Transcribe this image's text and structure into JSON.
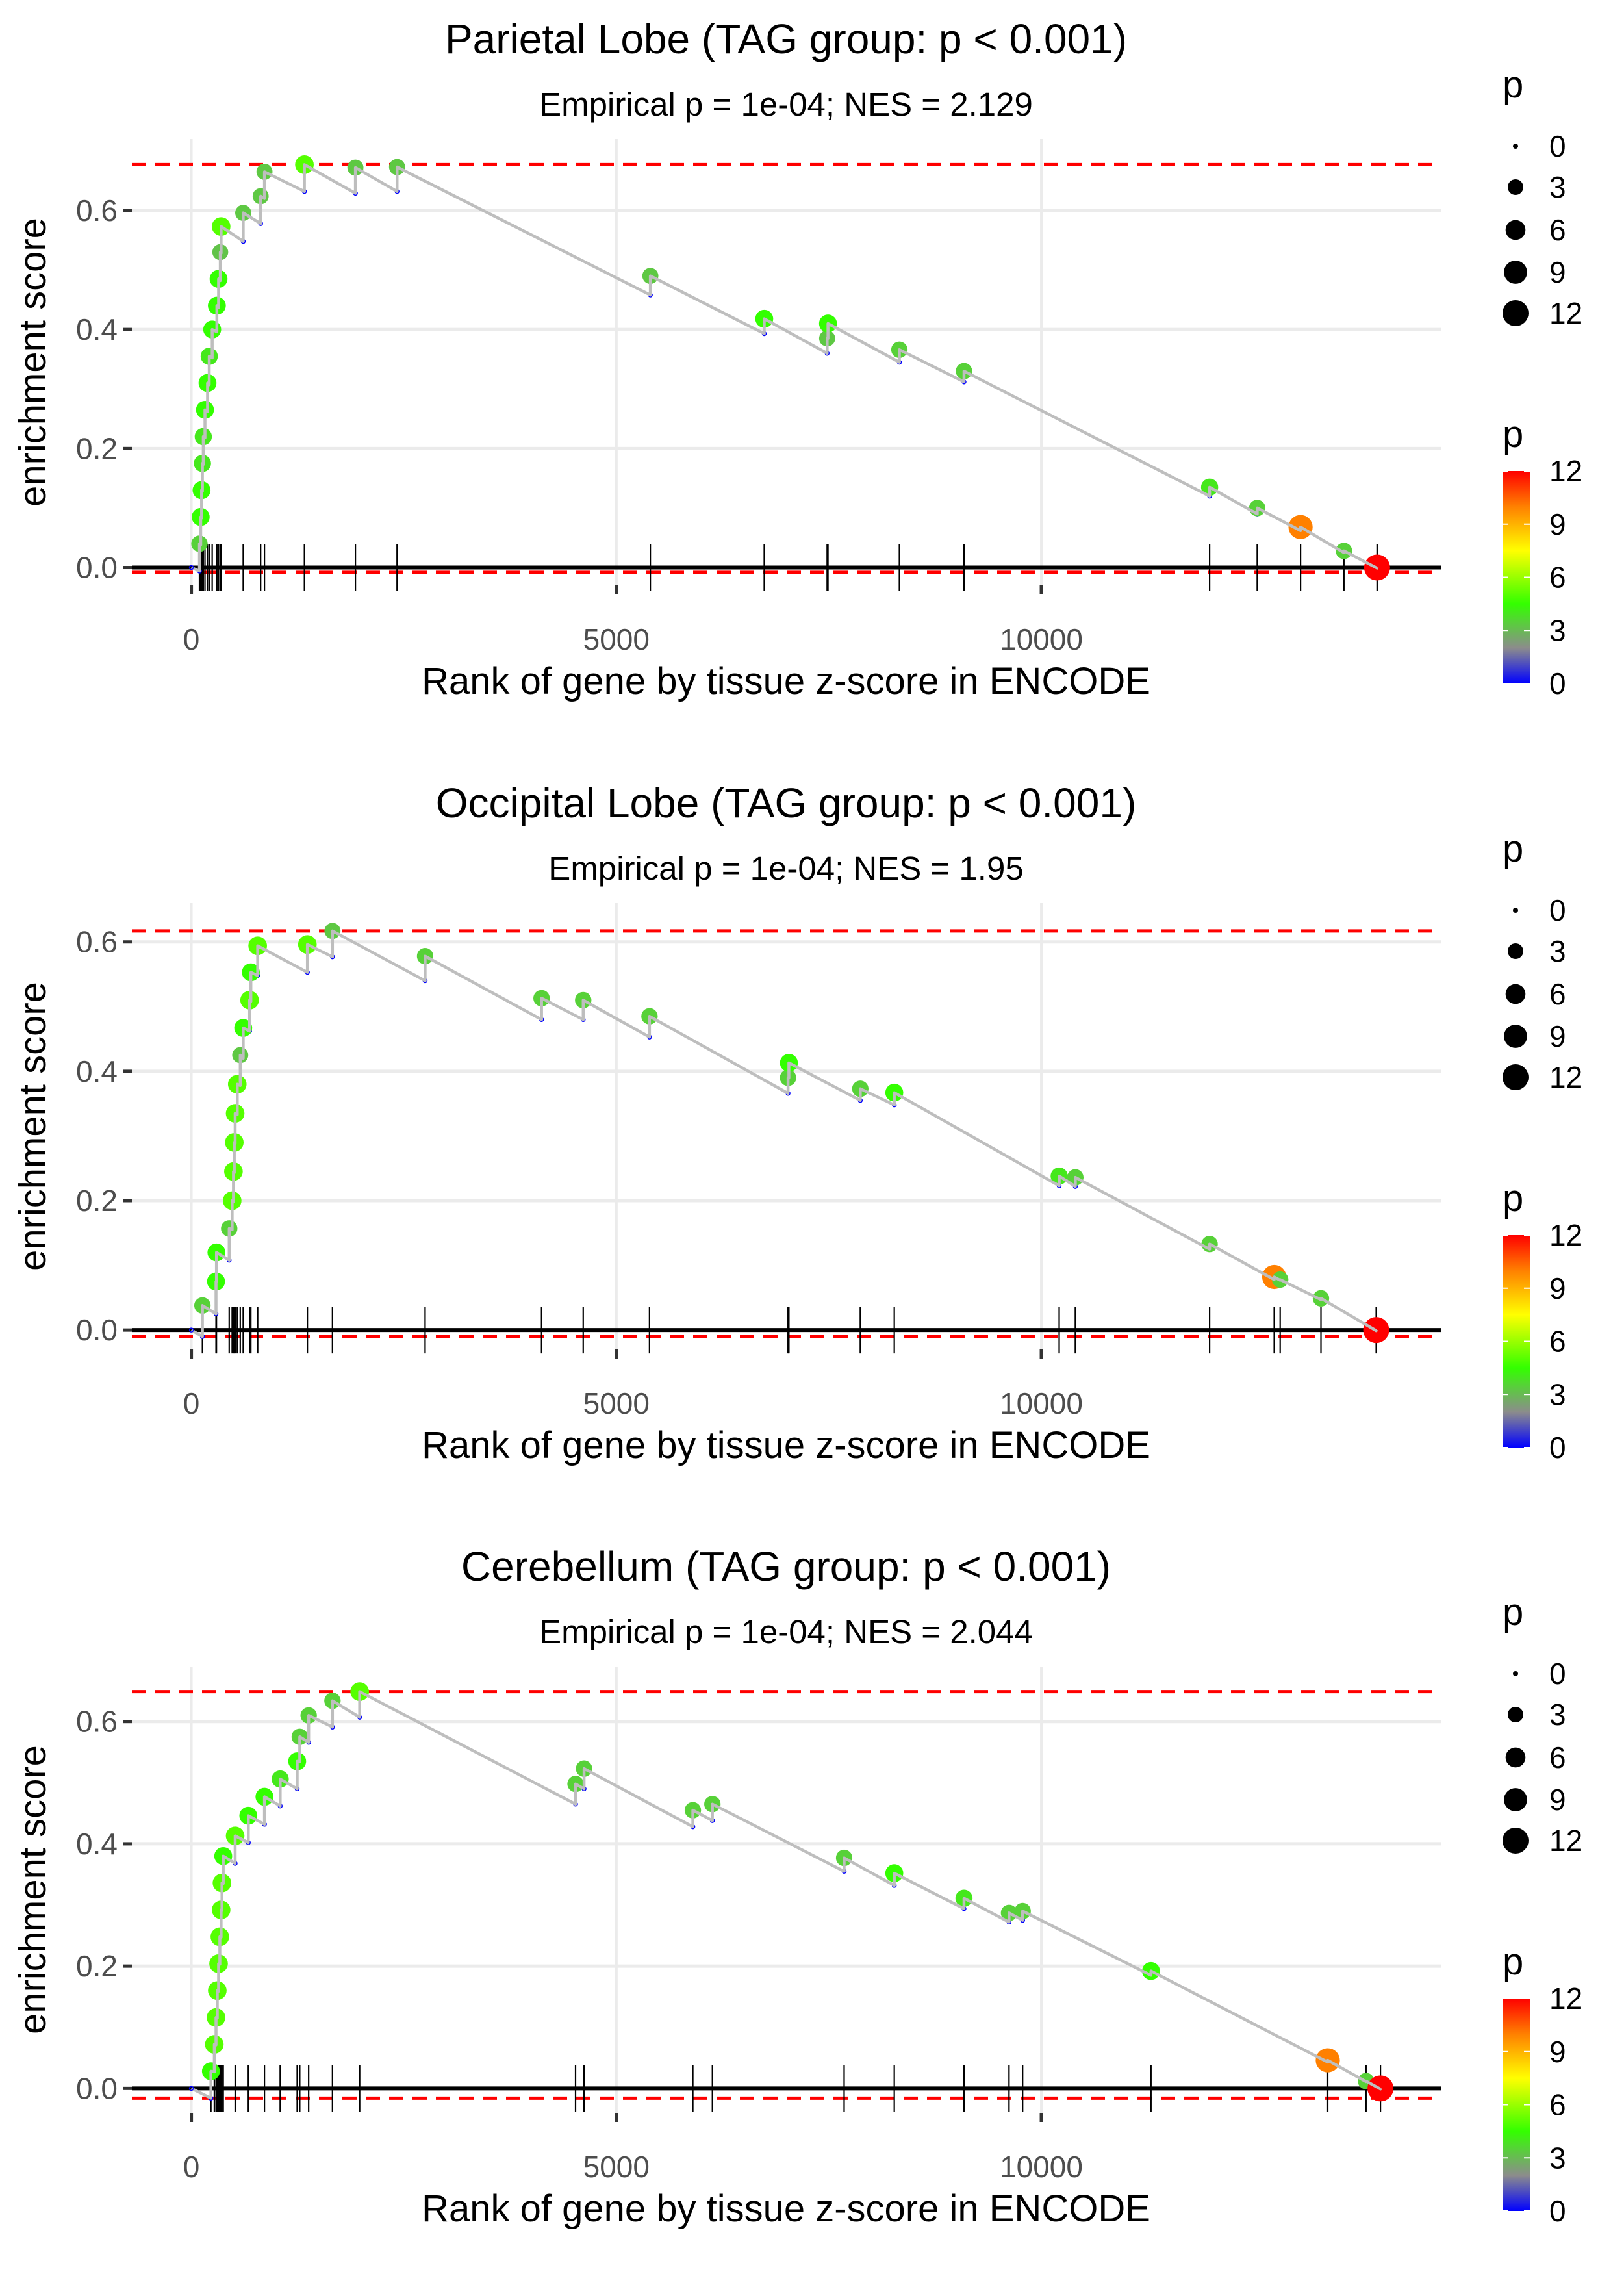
{
  "chart_data": [
    {
      "type": "line",
      "title": "Parietal Lobe (TAG group: p < 0.001)",
      "subtitle": "Empirical p = 1e-04; NES = 2.129",
      "xlabel": "Rank of gene by tissue z-score in ENCODE",
      "ylabel": "enrichment score",
      "xlim": [
        -700,
        14700
      ],
      "ylim": [
        -0.03,
        0.72
      ],
      "x_ticks": [
        0,
        5000,
        10000
      ],
      "x_tick_labels": [
        "0",
        "5000",
        "10000"
      ],
      "y_ticks": [
        0.0,
        0.2,
        0.4,
        0.6
      ],
      "y_tick_labels": [
        "0.0",
        "0.2",
        "0.4",
        "0.6"
      ],
      "max_es": 0.677,
      "min_es": -0.008,
      "grid": true,
      "hits": [
        {
          "rank": 95,
          "trough": -0.006,
          "peak": 0.04,
          "p": 3.5
        },
        {
          "rank": 110,
          "trough": 0.038,
          "peak": 0.085,
          "p": 4.5
        },
        {
          "rank": 120,
          "trough": 0.083,
          "peak": 0.13,
          "p": 4.5
        },
        {
          "rank": 130,
          "trough": 0.128,
          "peak": 0.175,
          "p": 4
        },
        {
          "rank": 140,
          "trough": 0.173,
          "peak": 0.22,
          "p": 4
        },
        {
          "rank": 160,
          "trough": 0.218,
          "peak": 0.265,
          "p": 4.5
        },
        {
          "rank": 190,
          "trough": 0.262,
          "peak": 0.31,
          "p": 4.5
        },
        {
          "rank": 210,
          "trough": 0.307,
          "peak": 0.355,
          "p": 4
        },
        {
          "rank": 245,
          "trough": 0.352,
          "peak": 0.4,
          "p": 4.5
        },
        {
          "rank": 300,
          "trough": 0.396,
          "peak": 0.44,
          "p": 4.5
        },
        {
          "rank": 320,
          "trough": 0.437,
          "peak": 0.485,
          "p": 4.5
        },
        {
          "rank": 340,
          "trough": 0.482,
          "peak": 0.53,
          "p": 3.2
        },
        {
          "rank": 350,
          "trough": 0.528,
          "peak": 0.573,
          "p": 5
        },
        {
          "rank": 610,
          "trough": 0.548,
          "peak": 0.596,
          "p": 3.3
        },
        {
          "rank": 815,
          "trough": 0.578,
          "peak": 0.624,
          "p": 3.3
        },
        {
          "rank": 860,
          "trough": 0.62,
          "peak": 0.665,
          "p": 3.3
        },
        {
          "rank": 1330,
          "trough": 0.632,
          "peak": 0.677,
          "p": 5
        },
        {
          "rank": 1930,
          "trough": 0.629,
          "peak": 0.672,
          "p": 3.3
        },
        {
          "rank": 2420,
          "trough": 0.632,
          "peak": 0.673,
          "p": 3.3
        },
        {
          "rank": 5400,
          "trough": 0.458,
          "peak": 0.49,
          "p": 3.3
        },
        {
          "rank": 6740,
          "trough": 0.393,
          "peak": 0.418,
          "p": 4.5
        },
        {
          "rank": 7480,
          "trough": 0.36,
          "peak": 0.385,
          "p": 3.3
        },
        {
          "rank": 7490,
          "trough": 0.385,
          "peak": 0.41,
          "p": 4.5
        },
        {
          "rank": 8330,
          "trough": 0.345,
          "peak": 0.366,
          "p": 3.5
        },
        {
          "rank": 9090,
          "trough": 0.312,
          "peak": 0.33,
          "p": 3.5
        },
        {
          "rank": 11980,
          "trough": 0.12,
          "peak": 0.135,
          "p": 4
        },
        {
          "rank": 12540,
          "trough": 0.09,
          "peak": 0.1,
          "p": 3.5
        },
        {
          "rank": 13050,
          "trough": 0.062,
          "peak": 0.068,
          "p": 10
        },
        {
          "rank": 13560,
          "trough": 0.025,
          "peak": 0.028,
          "p": 3.5
        },
        {
          "rank": 13950,
          "trough": -0.001,
          "peak": 0.0,
          "p": 12
        }
      ]
    },
    {
      "type": "line",
      "title": "Occipital Lobe (TAG group: p < 0.001)",
      "subtitle": "Empirical p = 1e-04; NES = 1.95",
      "xlabel": "Rank of gene by tissue z-score in ENCODE",
      "ylabel": "enrichment score",
      "xlim": [
        -700,
        14700
      ],
      "ylim": [
        -0.03,
        0.66
      ],
      "x_ticks": [
        0,
        5000,
        10000
      ],
      "x_tick_labels": [
        "0",
        "5000",
        "10000"
      ],
      "y_ticks": [
        0.0,
        0.2,
        0.4,
        0.6
      ],
      "y_tick_labels": [
        "0.0",
        "0.2",
        "0.4",
        "0.6"
      ],
      "max_es": 0.617,
      "min_es": -0.01,
      "grid": true,
      "hits": [
        {
          "rank": 130,
          "trough": -0.01,
          "peak": 0.038,
          "p": 3.5
        },
        {
          "rank": 290,
          "trough": 0.025,
          "peak": 0.075,
          "p": 4.5
        },
        {
          "rank": 295,
          "trough": 0.075,
          "peak": 0.12,
          "p": 4.5
        },
        {
          "rank": 445,
          "trough": 0.108,
          "peak": 0.157,
          "p": 3.5
        },
        {
          "rank": 480,
          "trough": 0.155,
          "peak": 0.2,
          "p": 5
        },
        {
          "rank": 495,
          "trough": 0.198,
          "peak": 0.245,
          "p": 5
        },
        {
          "rank": 505,
          "trough": 0.243,
          "peak": 0.29,
          "p": 5
        },
        {
          "rank": 515,
          "trough": 0.288,
          "peak": 0.335,
          "p": 5
        },
        {
          "rank": 540,
          "trough": 0.333,
          "peak": 0.38,
          "p": 5
        },
        {
          "rank": 575,
          "trough": 0.378,
          "peak": 0.425,
          "p": 3.3
        },
        {
          "rank": 610,
          "trough": 0.42,
          "peak": 0.467,
          "p": 4.5
        },
        {
          "rank": 685,
          "trough": 0.462,
          "peak": 0.51,
          "p": 5
        },
        {
          "rank": 700,
          "trough": 0.508,
          "peak": 0.553,
          "p": 4.5
        },
        {
          "rank": 780,
          "trough": 0.548,
          "peak": 0.594,
          "p": 5
        },
        {
          "rank": 1365,
          "trough": 0.553,
          "peak": 0.596,
          "p": 5
        },
        {
          "rank": 1660,
          "trough": 0.577,
          "peak": 0.617,
          "p": 3.3
        },
        {
          "rank": 2750,
          "trough": 0.54,
          "peak": 0.578,
          "p": 3.5
        },
        {
          "rank": 4120,
          "trough": 0.48,
          "peak": 0.513,
          "p": 3.5
        },
        {
          "rank": 4610,
          "trough": 0.48,
          "peak": 0.51,
          "p": 3.5
        },
        {
          "rank": 5390,
          "trough": 0.453,
          "peak": 0.485,
          "p": 3.5
        },
        {
          "rank": 7020,
          "trough": 0.366,
          "peak": 0.39,
          "p": 3.5
        },
        {
          "rank": 7030,
          "trough": 0.39,
          "peak": 0.413,
          "p": 4.5
        },
        {
          "rank": 7870,
          "trough": 0.355,
          "peak": 0.373,
          "p": 3.5
        },
        {
          "rank": 8270,
          "trough": 0.348,
          "peak": 0.367,
          "p": 4.5
        },
        {
          "rank": 10210,
          "trough": 0.223,
          "peak": 0.238,
          "p": 4
        },
        {
          "rank": 10400,
          "trough": 0.222,
          "peak": 0.236,
          "p": 3.5
        },
        {
          "rank": 11980,
          "trough": 0.125,
          "peak": 0.133,
          "p": 3.5
        },
        {
          "rank": 12740,
          "trough": 0.078,
          "peak": 0.082,
          "p": 10
        },
        {
          "rank": 12810,
          "trough": 0.077,
          "peak": 0.078,
          "p": 3.5
        },
        {
          "rank": 13290,
          "trough": 0.047,
          "peak": 0.049,
          "p": 3.5
        },
        {
          "rank": 13940,
          "trough": -0.001,
          "peak": 0.0,
          "p": 12
        }
      ]
    },
    {
      "type": "line",
      "title": "Cerebellum (TAG group: p < 0.001)",
      "subtitle": "Empirical p = 1e-04; NES = 2.044",
      "xlabel": "Rank of gene by tissue z-score in ENCODE",
      "ylabel": "enrichment score",
      "xlim": [
        -700,
        14700
      ],
      "ylim": [
        -0.04,
        0.69
      ],
      "x_ticks": [
        0,
        5000,
        10000
      ],
      "x_tick_labels": [
        "0",
        "5000",
        "10000"
      ],
      "y_ticks": [
        0.0,
        0.2,
        0.4,
        0.6
      ],
      "y_tick_labels": [
        "0.0",
        "0.2",
        "0.4",
        "0.6"
      ],
      "max_es": 0.649,
      "min_es": -0.016,
      "grid": true,
      "hits": [
        {
          "rank": 230,
          "trough": -0.016,
          "peak": 0.028,
          "p": 4.5
        },
        {
          "rank": 270,
          "trough": 0.027,
          "peak": 0.072,
          "p": 5
        },
        {
          "rank": 290,
          "trough": 0.071,
          "peak": 0.116,
          "p": 5
        },
        {
          "rank": 305,
          "trough": 0.115,
          "peak": 0.16,
          "p": 5
        },
        {
          "rank": 320,
          "trough": 0.159,
          "peak": 0.204,
          "p": 5
        },
        {
          "rank": 335,
          "trough": 0.203,
          "peak": 0.248,
          "p": 5
        },
        {
          "rank": 350,
          "trough": 0.247,
          "peak": 0.292,
          "p": 5
        },
        {
          "rank": 360,
          "trough": 0.291,
          "peak": 0.336,
          "p": 5
        },
        {
          "rank": 375,
          "trough": 0.335,
          "peak": 0.38,
          "p": 4.5
        },
        {
          "rank": 515,
          "trough": 0.368,
          "peak": 0.413,
          "p": 5
        },
        {
          "rank": 670,
          "trough": 0.402,
          "peak": 0.446,
          "p": 4.5
        },
        {
          "rank": 860,
          "trough": 0.432,
          "peak": 0.477,
          "p": 4.5
        },
        {
          "rank": 1045,
          "trough": 0.462,
          "peak": 0.506,
          "p": 4
        },
        {
          "rank": 1245,
          "trough": 0.49,
          "peak": 0.535,
          "p": 4.5
        },
        {
          "rank": 1275,
          "trough": 0.534,
          "peak": 0.575,
          "p": 3.5
        },
        {
          "rank": 1380,
          "trough": 0.566,
          "peak": 0.61,
          "p": 3.5
        },
        {
          "rank": 1660,
          "trough": 0.591,
          "peak": 0.634,
          "p": 3.5
        },
        {
          "rank": 1980,
          "trough": 0.607,
          "peak": 0.649,
          "p": 5
        },
        {
          "rank": 4520,
          "trough": 0.465,
          "peak": 0.498,
          "p": 3.5
        },
        {
          "rank": 4620,
          "trough": 0.49,
          "peak": 0.523,
          "p": 3.5
        },
        {
          "rank": 5900,
          "trough": 0.428,
          "peak": 0.455,
          "p": 3.5
        },
        {
          "rank": 6130,
          "trough": 0.438,
          "peak": 0.465,
          "p": 3.5
        },
        {
          "rank": 7680,
          "trough": 0.355,
          "peak": 0.377,
          "p": 3.5
        },
        {
          "rank": 8270,
          "trough": 0.332,
          "peak": 0.352,
          "p": 4.5
        },
        {
          "rank": 9090,
          "trough": 0.294,
          "peak": 0.311,
          "p": 4
        },
        {
          "rank": 9620,
          "trough": 0.272,
          "peak": 0.287,
          "p": 3.5
        },
        {
          "rank": 9780,
          "trough": 0.275,
          "peak": 0.29,
          "p": 3.5
        },
        {
          "rank": 11290,
          "trough": 0.185,
          "peak": 0.192,
          "p": 4.5
        },
        {
          "rank": 13370,
          "trough": 0.043,
          "peak": 0.046,
          "p": 10
        },
        {
          "rank": 13820,
          "trough": 0.011,
          "peak": 0.012,
          "p": 3.5
        },
        {
          "rank": 13990,
          "trough": -0.001,
          "peak": 0.0,
          "p": 12
        }
      ]
    }
  ],
  "legend": {
    "size_title": "p",
    "size_values": [
      0,
      3,
      6,
      9,
      12
    ],
    "size_labels": [
      "0",
      "3",
      "6",
      "9",
      "12"
    ],
    "color_title": "p",
    "color_values": [
      0,
      3,
      6,
      9,
      12
    ],
    "color_labels": [
      "0",
      "3",
      "6",
      "9",
      "12"
    ],
    "color_range": [
      0,
      12
    ],
    "color_stops": [
      {
        "value": 0,
        "color": "#0000ff"
      },
      {
        "value": 2,
        "color": "#8c8c8c"
      },
      {
        "value": 4.5,
        "color": "#33ff00"
      },
      {
        "value": 7.5,
        "color": "#ffff00"
      },
      {
        "value": 10,
        "color": "#ff8000"
      },
      {
        "value": 12,
        "color": "#ff0000"
      }
    ]
  },
  "colors": {
    "curve": "#bebebe",
    "max_min_line": "#ff0000",
    "zero_line": "#000000",
    "rug": "#000000",
    "grid": "#ebebeb",
    "trough_dot": "#0000ff"
  }
}
